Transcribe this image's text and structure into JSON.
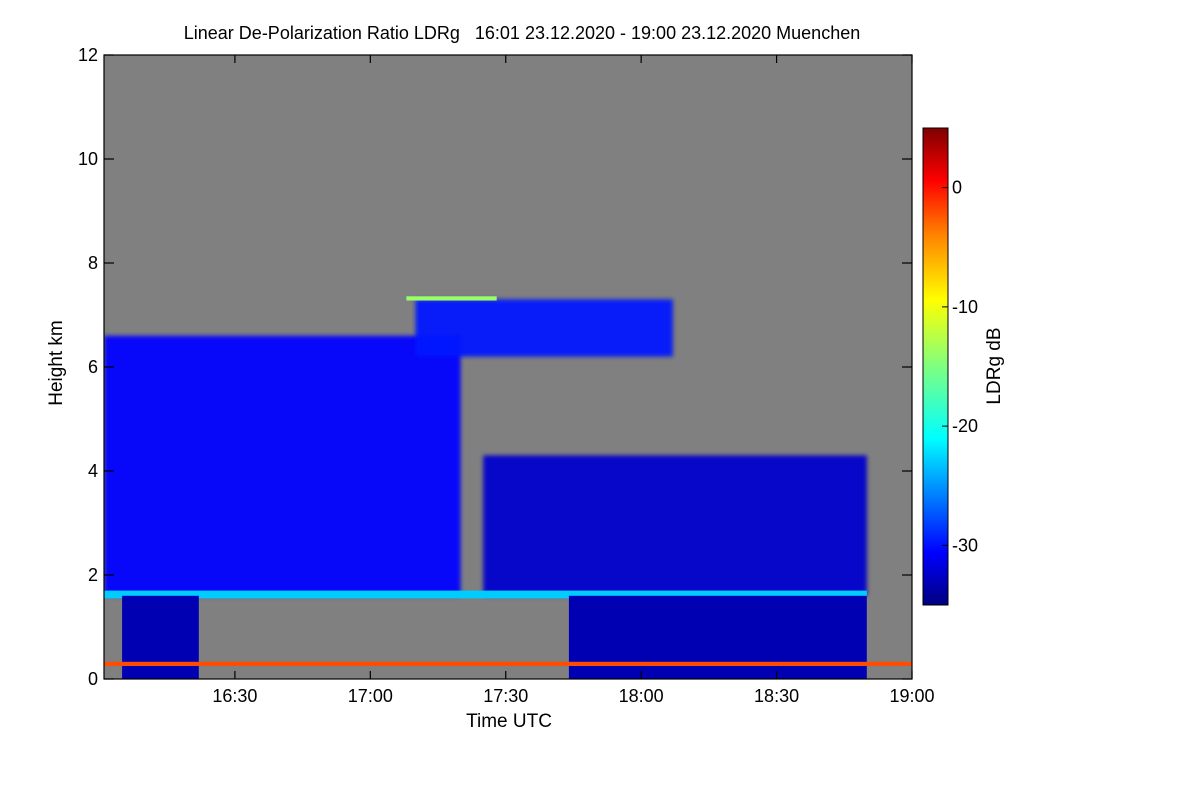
{
  "chart_data": {
    "type": "heatmap",
    "title": "Linear De-Polarization Ratio LDRg   16:01 23.12.2020 - 19:00 23.12.2020 Muenchen",
    "xlabel": "Time UTC",
    "ylabel": "Height km",
    "x_range": [
      "16:01",
      "19:00"
    ],
    "ylim": [
      0,
      12
    ],
    "x_ticks": [
      "16:30",
      "17:00",
      "17:30",
      "18:00",
      "18:30",
      "19:00"
    ],
    "y_ticks": [
      0,
      2,
      4,
      6,
      8,
      10,
      12
    ],
    "colorbar": {
      "label": "LDRg dB",
      "range": [
        -35,
        5
      ],
      "ticks": [
        0,
        -10,
        -20,
        -30
      ]
    },
    "colors": {
      "background": "#808080",
      "colormap": [
        "#00007f",
        "#0000ff",
        "#007fff",
        "#00ffff",
        "#7fff7f",
        "#ffff00",
        "#ff7f00",
        "#ff0000",
        "#7f0000"
      ]
    },
    "features": [
      {
        "name": "cloud",
        "start": "16:01",
        "end": "17:20",
        "base_km": 1.6,
        "top_km": 6.6,
        "ldr_db": -30
      },
      {
        "name": "cloud",
        "start": "17:25",
        "end": "18:50",
        "base_km": 1.6,
        "top_km": 4.3,
        "ldr_db": -32
      },
      {
        "name": "cirrus",
        "start": "17:10",
        "end": "18:07",
        "base_km": 6.2,
        "top_km": 7.3,
        "ldr_db": -29
      },
      {
        "name": "melting-layer",
        "start": "16:01",
        "end": "18:50",
        "base_km": 1.55,
        "top_km": 1.7,
        "ldr_db": -22
      },
      {
        "name": "precipitation",
        "start": "16:05",
        "end": "16:22",
        "base_km": 0,
        "top_km": 1.6,
        "ldr_db": -33
      },
      {
        "name": "precipitation",
        "start": "17:44",
        "end": "18:50",
        "base_km": 0,
        "top_km": 1.6,
        "ldr_db": -33
      },
      {
        "name": "surface-layer",
        "start": "16:01",
        "end": "19:00",
        "base_km": 0.25,
        "top_km": 0.33,
        "ldr_db": -3
      },
      {
        "name": "thin-layer",
        "start": "17:08",
        "end": "17:28",
        "base_km": 7.28,
        "top_km": 7.36,
        "ldr_db": -14
      }
    ]
  }
}
